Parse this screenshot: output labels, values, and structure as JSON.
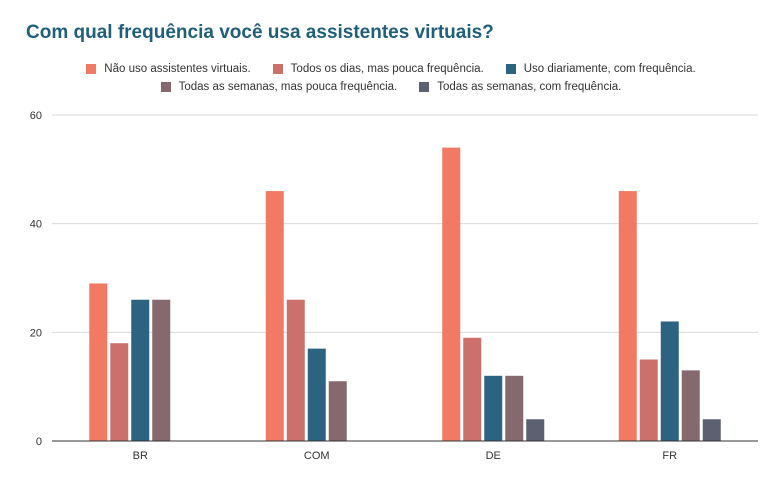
{
  "chart_data": {
    "type": "bar",
    "title": "Com qual frequência você usa assistentes virtuais?",
    "categories": [
      "BR",
      "COM",
      "DE",
      "FR"
    ],
    "series": [
      {
        "name": "Não uso assistentes virtuais.",
        "color": "#f27a65",
        "values": [
          29,
          46,
          54,
          46
        ]
      },
      {
        "name": "Todos os dias, mas pouca frequência.",
        "color": "#cb706a",
        "values": [
          18,
          26,
          19,
          15
        ]
      },
      {
        "name": "Uso diariamente, com frequência.",
        "color": "#2c6380",
        "values": [
          26,
          17,
          12,
          22
        ]
      },
      {
        "name": "Todas as semanas, mas pouca frequência.",
        "color": "#85696f",
        "values": [
          26,
          11,
          12,
          13
        ]
      },
      {
        "name": "Todas as semanas, com frequência.",
        "color": "#5b6170",
        "values": [
          null,
          null,
          4,
          4
        ]
      }
    ],
    "ylim": [
      0,
      60
    ],
    "yticks": [
      0,
      20,
      40,
      60
    ],
    "xlabel": "",
    "ylabel": "",
    "legend_position": "top",
    "grid": true
  }
}
